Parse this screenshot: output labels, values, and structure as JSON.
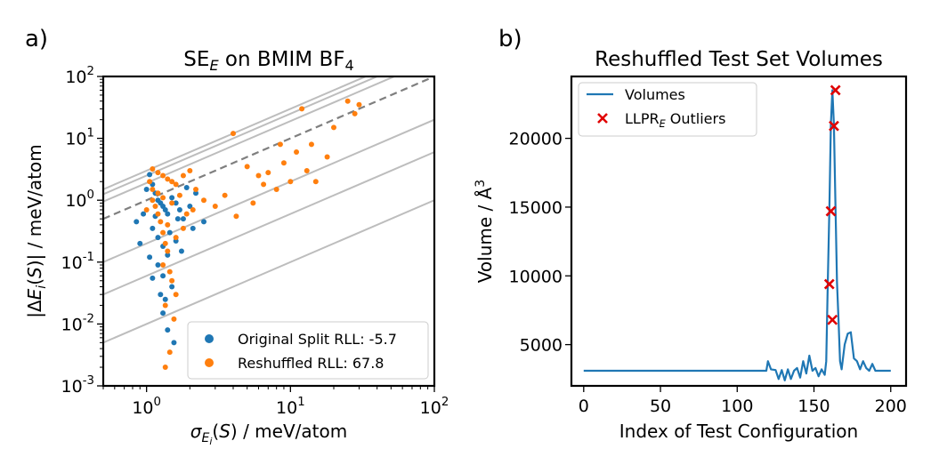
{
  "colors": {
    "blue": "#1f77b4",
    "orange": "#ff7f0e",
    "red": "#e00000",
    "gray": "#bdbdbd",
    "dashed": "#7f7f7f"
  },
  "chart_data": [
    {
      "type": "scatter",
      "panel_label": "a)",
      "title": "SE_E on BMIM BF4",
      "xlabel": "σ_Ei(S) / meV/atom",
      "ylabel": "|ΔE_i(S)| / meV/atom",
      "xscale": "log",
      "yscale": "log",
      "xlim": [
        0.5,
        100
      ],
      "ylim": [
        0.001,
        100
      ],
      "x_tick_labels": [
        "10^0",
        "10^1",
        "10^2"
      ],
      "y_tick_labels": [
        "10^-3",
        "10^-2",
        "10^-1",
        "10^0",
        "10^1",
        "10^2"
      ],
      "reference_lines": {
        "solid_gray_ratios": [
          0.01,
          0.06,
          0.2,
          1.9,
          2.5,
          3.0
        ],
        "dashed_ratio": 1.0
      },
      "legend_position": "bottom-right",
      "series": [
        {
          "name": "Original Split RLL: -5.7",
          "color_key": "blue",
          "points": [
            [
              1.05,
              2.6
            ],
            [
              1.1,
              1.8
            ],
            [
              1.15,
              1.3
            ],
            [
              1.2,
              1.0
            ],
            [
              1.25,
              0.9
            ],
            [
              1.3,
              0.8
            ],
            [
              1.35,
              0.7
            ],
            [
              1.4,
              0.6
            ],
            [
              1.5,
              1.1
            ],
            [
              1.6,
              0.9
            ],
            [
              1.7,
              0.7
            ],
            [
              1.8,
              0.5
            ],
            [
              2.0,
              0.8
            ],
            [
              2.2,
              1.3
            ],
            [
              2.5,
              0.45
            ],
            [
              1.1,
              0.35
            ],
            [
              1.2,
              0.25
            ],
            [
              1.3,
              0.18
            ],
            [
              1.4,
              0.13
            ],
            [
              1.2,
              0.09
            ],
            [
              1.3,
              0.06
            ],
            [
              1.1,
              0.055
            ],
            [
              1.5,
              0.04
            ],
            [
              1.25,
              0.03
            ],
            [
              1.35,
              0.025
            ],
            [
              1.3,
              0.015
            ],
            [
              1.4,
              0.008
            ],
            [
              1.55,
              0.005
            ],
            [
              0.95,
              0.6
            ],
            [
              0.9,
              0.2
            ],
            [
              0.85,
              0.45
            ],
            [
              1.0,
              1.5
            ],
            [
              1.15,
              0.55
            ],
            [
              1.45,
              0.3
            ],
            [
              1.65,
              0.5
            ],
            [
              1.9,
              1.6
            ],
            [
              2.1,
              0.35
            ],
            [
              1.6,
              0.22
            ],
            [
              1.75,
              0.15
            ],
            [
              1.05,
              0.12
            ]
          ]
        },
        {
          "name": "Reshuffled RLL: 67.8",
          "color_key": "orange",
          "points": [
            [
              1.1,
              3.2
            ],
            [
              1.2,
              2.8
            ],
            [
              1.3,
              2.5
            ],
            [
              1.4,
              2.2
            ],
            [
              1.5,
              2.0
            ],
            [
              1.6,
              1.8
            ],
            [
              1.8,
              2.5
            ],
            [
              2.0,
              3.0
            ],
            [
              2.2,
              1.5
            ],
            [
              2.5,
              1.0
            ],
            [
              3.0,
              0.8
            ],
            [
              3.5,
              1.2
            ],
            [
              4.0,
              12
            ],
            [
              4.2,
              0.55
            ],
            [
              5.0,
              3.5
            ],
            [
              5.5,
              0.9
            ],
            [
              6.0,
              2.5
            ],
            [
              6.5,
              1.8
            ],
            [
              7.0,
              2.8
            ],
            [
              8.0,
              1.5
            ],
            [
              8.5,
              8
            ],
            [
              9.0,
              4
            ],
            [
              10.0,
              2.0
            ],
            [
              11.0,
              6
            ],
            [
              12.0,
              30
            ],
            [
              13.0,
              3
            ],
            [
              14.0,
              8
            ],
            [
              15.0,
              2
            ],
            [
              18.0,
              5
            ],
            [
              20.0,
              15
            ],
            [
              25.0,
              40
            ],
            [
              28.0,
              25
            ],
            [
              30.0,
              35
            ],
            [
              1.1,
              1.0
            ],
            [
              1.15,
              0.8
            ],
            [
              1.2,
              0.6
            ],
            [
              1.25,
              0.45
            ],
            [
              1.3,
              0.3
            ],
            [
              1.35,
              0.2
            ],
            [
              1.4,
              0.15
            ],
            [
              1.3,
              0.09
            ],
            [
              1.45,
              0.07
            ],
            [
              1.5,
              0.05
            ],
            [
              1.6,
              0.03
            ],
            [
              1.35,
              0.02
            ],
            [
              1.55,
              0.012
            ],
            [
              1.45,
              0.0035
            ],
            [
              1.35,
              0.002
            ],
            [
              1.1,
              1.5
            ],
            [
              1.2,
              1.3
            ],
            [
              1.3,
              1.1
            ],
            [
              1.5,
              0.9
            ],
            [
              1.7,
              1.2
            ],
            [
              1.9,
              0.6
            ],
            [
              2.1,
              0.7
            ],
            [
              1.0,
              0.7
            ],
            [
              1.05,
              2.0
            ],
            [
              1.4,
              0.4
            ],
            [
              1.6,
              0.25
            ],
            [
              1.8,
              0.35
            ]
          ]
        }
      ]
    },
    {
      "type": "line",
      "panel_label": "b)",
      "title": "Reshuffled Test Set Volumes",
      "xlabel": "Index of Test Configuration",
      "ylabel": "Volume / Å^3",
      "xlim": [
        -8,
        210
      ],
      "ylim": [
        2000,
        24500
      ],
      "x_ticks": [
        0,
        50,
        100,
        150,
        200
      ],
      "y_ticks": [
        5000,
        10000,
        15000,
        20000
      ],
      "legend_position": "top-left",
      "series": [
        {
          "name": "Volumes",
          "color_key": "blue",
          "points": [
            [
              0,
              3100
            ],
            [
              119,
              3100
            ],
            [
              120,
              3800
            ],
            [
              122,
              3200
            ],
            [
              125,
              3150
            ],
            [
              127,
              2500
            ],
            [
              129,
              3150
            ],
            [
              131,
              2400
            ],
            [
              133,
              3200
            ],
            [
              135,
              2500
            ],
            [
              137,
              3100
            ],
            [
              139,
              3300
            ],
            [
              141,
              2600
            ],
            [
              143,
              3800
            ],
            [
              145,
              2900
            ],
            [
              147,
              4200
            ],
            [
              149,
              3100
            ],
            [
              151,
              3300
            ],
            [
              153,
              2700
            ],
            [
              155,
              3200
            ],
            [
              157,
              2800
            ],
            [
              158,
              3800
            ],
            [
              159,
              9400
            ],
            [
              160,
              14800
            ],
            [
              161,
              21000
            ],
            [
              162,
              23500
            ],
            [
              163,
              21000
            ],
            [
              164,
              15000
            ],
            [
              165,
              9500
            ],
            [
              166,
              6800
            ],
            [
              167,
              3800
            ],
            [
              168,
              3200
            ],
            [
              170,
              5000
            ],
            [
              172,
              5800
            ],
            [
              174,
              5900
            ],
            [
              176,
              4000
            ],
            [
              178,
              3800
            ],
            [
              180,
              3200
            ],
            [
              182,
              3800
            ],
            [
              184,
              3300
            ],
            [
              186,
              3100
            ],
            [
              188,
              3600
            ],
            [
              190,
              3100
            ],
            [
              200,
              3100
            ]
          ]
        },
        {
          "name": "LLPR_E Outliers",
          "color_key": "red",
          "points": [
            [
              160,
              9400
            ],
            [
              161,
              14700
            ],
            [
              162,
              6800
            ],
            [
              163,
              20900
            ],
            [
              164,
              23500
            ]
          ]
        }
      ]
    }
  ]
}
